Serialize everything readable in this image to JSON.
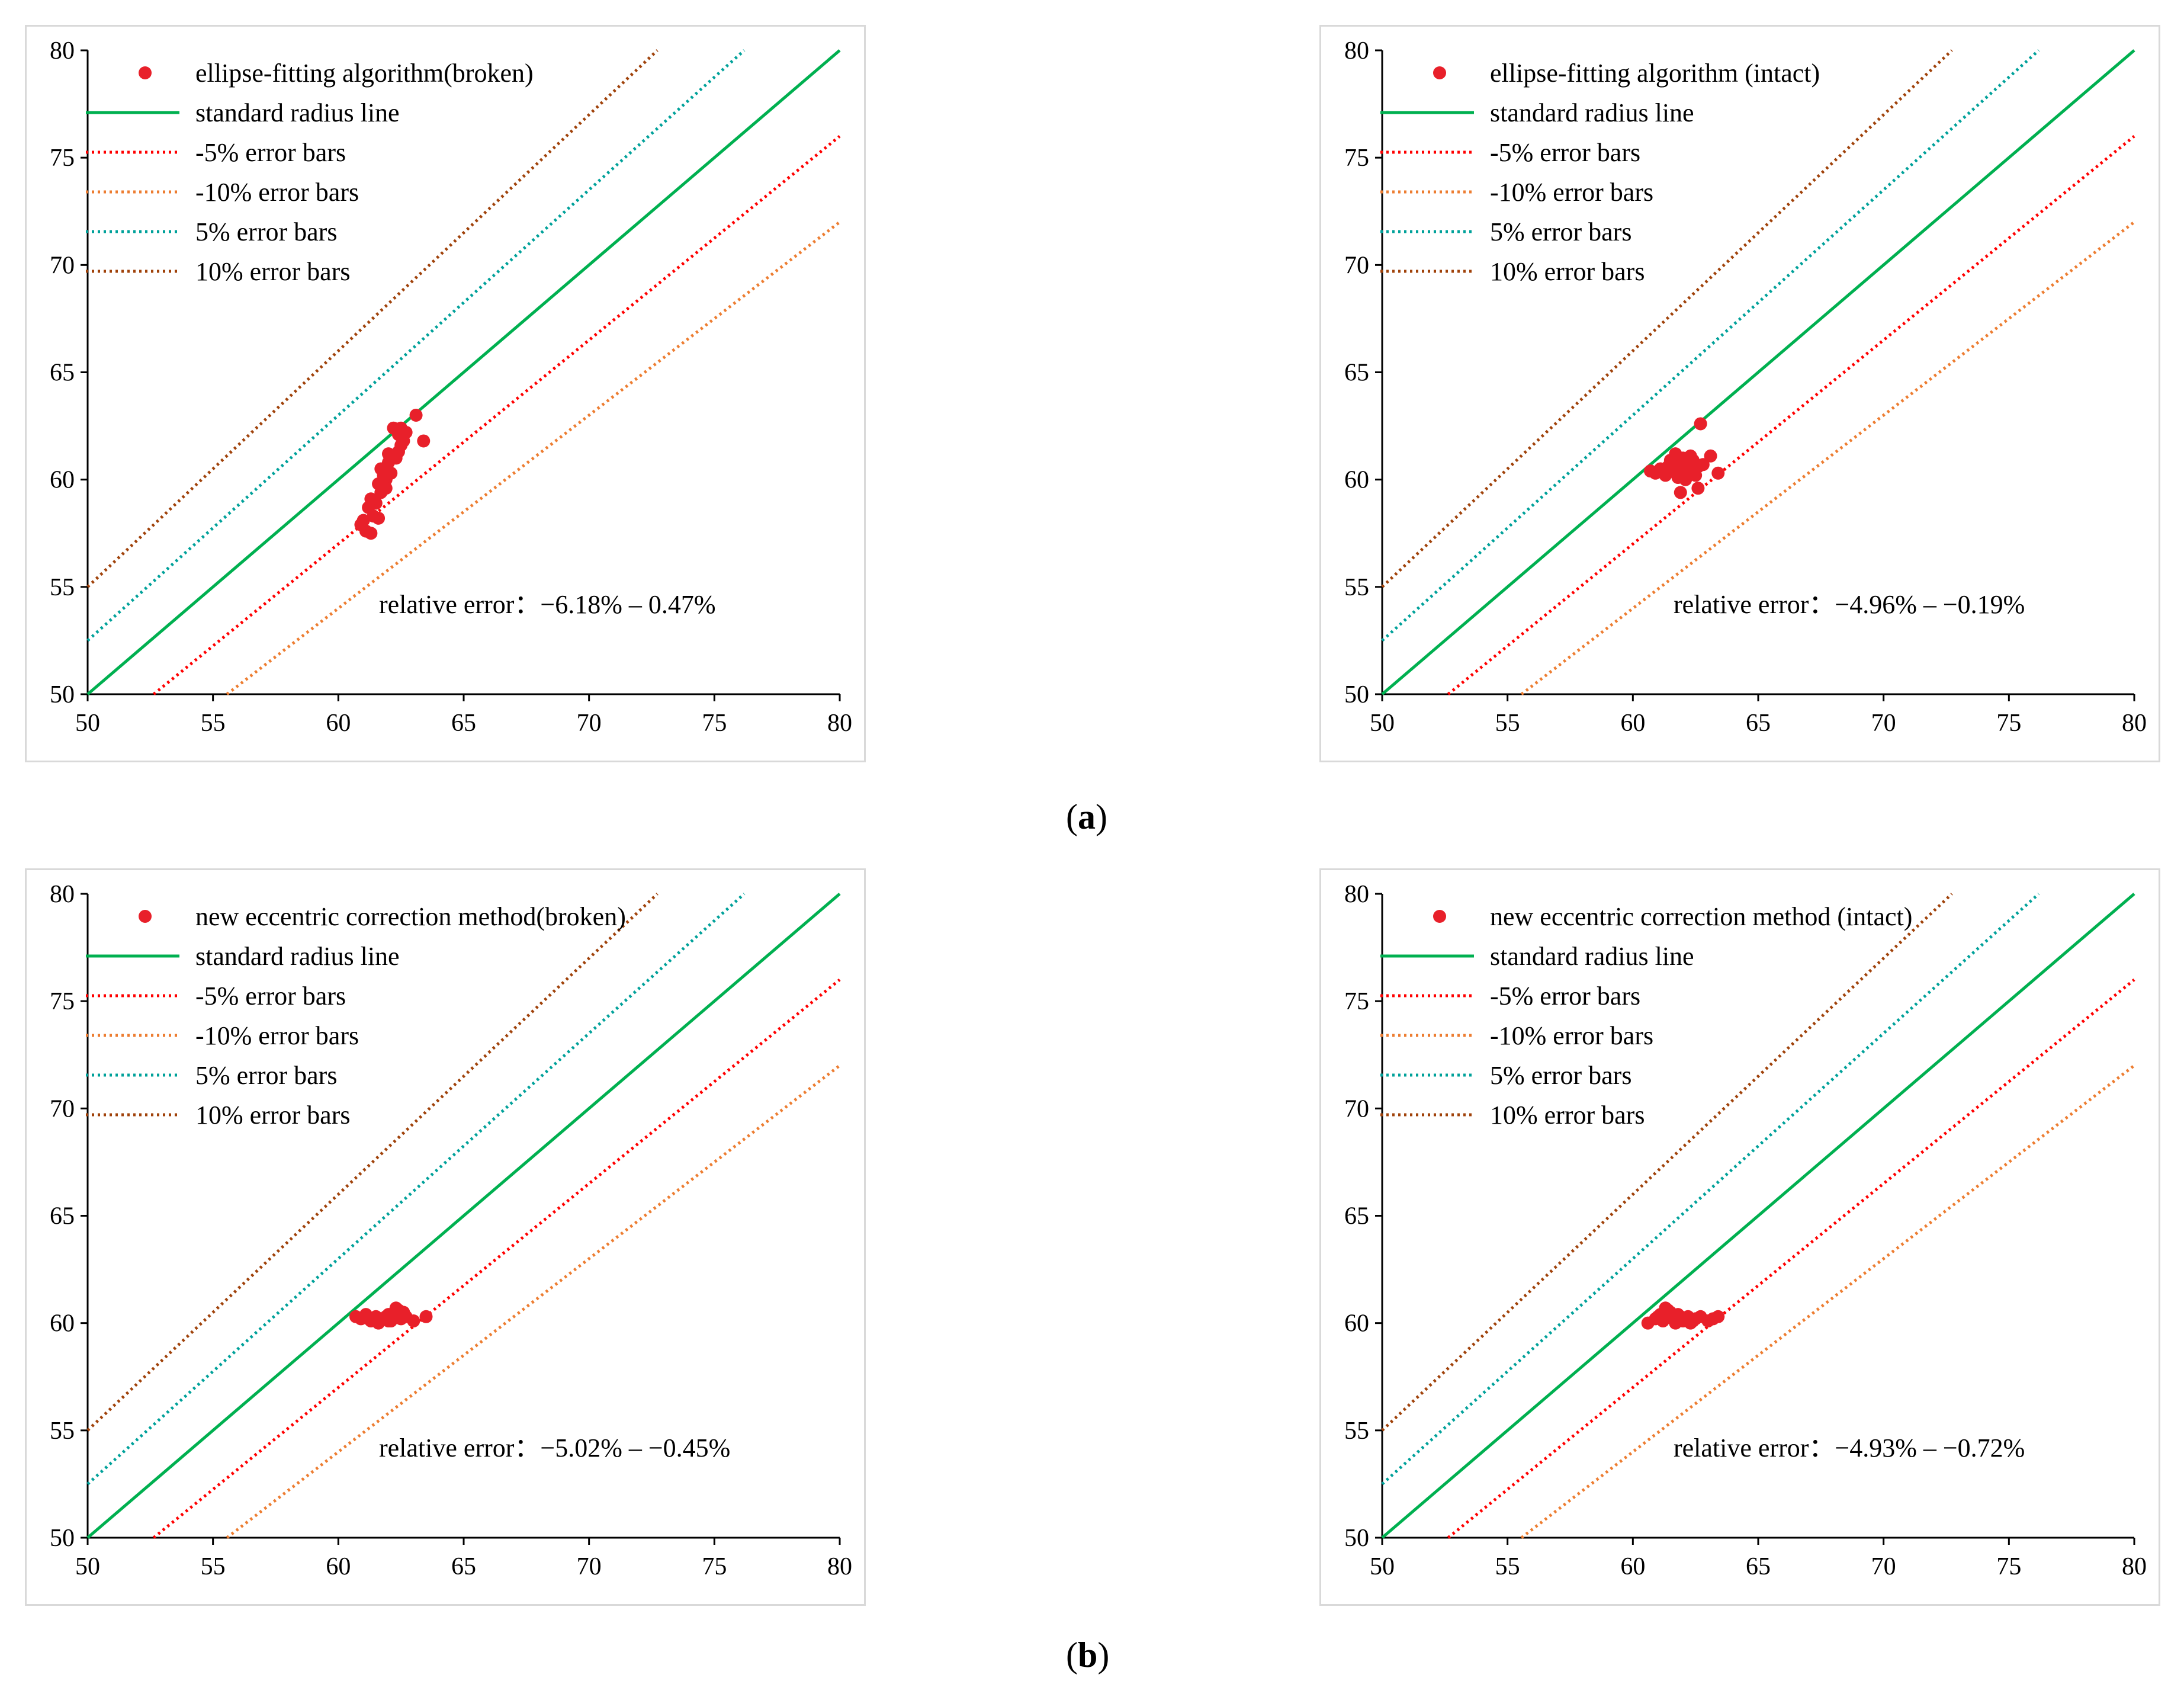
{
  "figure_labels": [
    {
      "open": "(",
      "letter": "a",
      "close": ")"
    },
    {
      "open": "(",
      "letter": "b",
      "close": ")"
    }
  ],
  "colors": {
    "points": "#e8202a",
    "standard": "#00b050",
    "minus5": "#ff0000",
    "minus10": "#ed7d31",
    "plus5": "#00a19a",
    "plus10": "#a0420a",
    "axis": "#000000"
  },
  "chart_data": [
    {
      "type": "scatter",
      "xlim": [
        50,
        80
      ],
      "ylim": [
        50,
        80
      ],
      "xticks": [
        50,
        55,
        60,
        65,
        70,
        75,
        80
      ],
      "yticks": [
        50,
        55,
        60,
        65,
        70,
        75,
        80
      ],
      "legend_position": "top-left",
      "grid": false,
      "annotation": "relative error：−6.18% – 0.47%",
      "series": [
        {
          "name": "ellipse-fitting algorithm(broken)",
          "kind": "points",
          "color": "#e8202a",
          "points": [
            [
              60.9,
              57.9
            ],
            [
              61.1,
              57.6
            ],
            [
              61.3,
              57.5
            ],
            [
              61.0,
              58.1
            ],
            [
              61.4,
              58.3
            ],
            [
              61.6,
              58.2
            ],
            [
              61.2,
              58.7
            ],
            [
              61.5,
              58.9
            ],
            [
              61.3,
              59.1
            ],
            [
              61.7,
              59.4
            ],
            [
              61.6,
              59.8
            ],
            [
              61.9,
              60.0
            ],
            [
              61.8,
              60.2
            ],
            [
              62.1,
              60.3
            ],
            [
              61.7,
              60.5
            ],
            [
              62.0,
              60.8
            ],
            [
              62.3,
              61.0
            ],
            [
              62.4,
              61.3
            ],
            [
              62.5,
              61.6
            ],
            [
              62.6,
              61.8
            ],
            [
              62.4,
              62.1
            ],
            [
              62.7,
              62.2
            ],
            [
              62.2,
              62.4
            ],
            [
              62.5,
              62.4
            ],
            [
              63.1,
              63.0
            ],
            [
              63.4,
              61.8
            ],
            [
              62.0,
              61.2
            ],
            [
              61.9,
              59.6
            ]
          ]
        },
        {
          "name": "standard radius line",
          "kind": "line",
          "style": "solid",
          "color": "#00b050",
          "factor": 1.0
        },
        {
          "name": "-5% error bars",
          "kind": "line",
          "style": "dotted",
          "color": "#ff0000",
          "factor": 0.95
        },
        {
          "name": "-10% error bars",
          "kind": "line",
          "style": "dotted",
          "color": "#ed7d31",
          "factor": 0.9
        },
        {
          "name": "5% error bars",
          "kind": "line",
          "style": "dotted",
          "color": "#00a19a",
          "factor": 1.05
        },
        {
          "name": "10% error bars",
          "kind": "line",
          "style": "dotted",
          "color": "#a0420a",
          "factor": 1.1
        }
      ]
    },
    {
      "type": "scatter",
      "xlim": [
        50,
        80
      ],
      "ylim": [
        50,
        80
      ],
      "xticks": [
        50,
        55,
        60,
        65,
        70,
        75,
        80
      ],
      "yticks": [
        50,
        55,
        60,
        65,
        70,
        75,
        80
      ],
      "legend_position": "top-left",
      "grid": false,
      "annotation": "relative error：−4.96% – −0.19%",
      "series": [
        {
          "name": "ellipse-fitting algorithm (intact)",
          "kind": "points",
          "color": "#e8202a",
          "points": [
            [
              60.7,
              60.4
            ],
            [
              60.9,
              60.3
            ],
            [
              61.1,
              60.5
            ],
            [
              61.3,
              60.2
            ],
            [
              61.4,
              60.6
            ],
            [
              61.6,
              60.4
            ],
            [
              61.8,
              60.1
            ],
            [
              61.9,
              60.7
            ],
            [
              62.1,
              60.3
            ],
            [
              62.2,
              60.8
            ],
            [
              62.4,
              60.5
            ],
            [
              62.5,
              60.2
            ],
            [
              61.5,
              60.9
            ],
            [
              61.7,
              61.2
            ],
            [
              62.0,
              61.0
            ],
            [
              62.3,
              61.1
            ],
            [
              62.6,
              60.6
            ],
            [
              62.8,
              60.7
            ],
            [
              63.1,
              61.1
            ],
            [
              63.4,
              60.3
            ],
            [
              62.6,
              59.6
            ],
            [
              61.9,
              59.4
            ],
            [
              62.1,
              60.0
            ],
            [
              62.7,
              62.6
            ],
            [
              61.2,
              60.4
            ],
            [
              62.4,
              60.9
            ]
          ]
        },
        {
          "name": "standard radius line",
          "kind": "line",
          "style": "solid",
          "color": "#00b050",
          "factor": 1.0
        },
        {
          "name": "-5% error bars",
          "kind": "line",
          "style": "dotted",
          "color": "#ff0000",
          "factor": 0.95
        },
        {
          "name": "-10% error bars",
          "kind": "line",
          "style": "dotted",
          "color": "#ed7d31",
          "factor": 0.9
        },
        {
          "name": "5% error bars",
          "kind": "line",
          "style": "dotted",
          "color": "#00a19a",
          "factor": 1.05
        },
        {
          "name": "10% error bars",
          "kind": "line",
          "style": "dotted",
          "color": "#a0420a",
          "factor": 1.1
        }
      ]
    },
    {
      "type": "scatter",
      "xlim": [
        50,
        80
      ],
      "ylim": [
        50,
        80
      ],
      "xticks": [
        50,
        55,
        60,
        65,
        70,
        75,
        80
      ],
      "yticks": [
        50,
        55,
        60,
        65,
        70,
        75,
        80
      ],
      "legend_position": "top-left",
      "grid": false,
      "annotation": "relative error：−5.02% – −0.45%",
      "series": [
        {
          "name": "new eccentric correction method(broken)",
          "kind": "points",
          "color": "#e8202a",
          "points": [
            [
              60.7,
              60.3
            ],
            [
              60.9,
              60.2
            ],
            [
              61.1,
              60.4
            ],
            [
              61.3,
              60.1
            ],
            [
              61.5,
              60.3
            ],
            [
              61.6,
              60.0
            ],
            [
              61.8,
              60.2
            ],
            [
              62.0,
              60.4
            ],
            [
              62.1,
              60.1
            ],
            [
              62.3,
              60.3
            ],
            [
              62.4,
              60.6
            ],
            [
              62.5,
              60.2
            ],
            [
              62.6,
              60.5
            ],
            [
              62.3,
              60.7
            ],
            [
              62.0,
              60.1
            ],
            [
              61.4,
              60.2
            ],
            [
              61.9,
              60.3
            ],
            [
              63.0,
              60.1
            ],
            [
              63.5,
              60.3
            ],
            [
              62.7,
              60.3
            ],
            [
              61.2,
              60.2
            ]
          ]
        },
        {
          "name": "standard radius line",
          "kind": "line",
          "style": "solid",
          "color": "#00b050",
          "factor": 1.0
        },
        {
          "name": "-5% error bars",
          "kind": "line",
          "style": "dotted",
          "color": "#ff0000",
          "factor": 0.95
        },
        {
          "name": "-10% error bars",
          "kind": "line",
          "style": "dotted",
          "color": "#ed7d31",
          "factor": 0.9
        },
        {
          "name": "5% error bars",
          "kind": "line",
          "style": "dotted",
          "color": "#00a19a",
          "factor": 1.05
        },
        {
          "name": "10% error bars",
          "kind": "line",
          "style": "dotted",
          "color": "#a0420a",
          "factor": 1.1
        }
      ]
    },
    {
      "type": "scatter",
      "xlim": [
        50,
        80
      ],
      "ylim": [
        50,
        80
      ],
      "xticks": [
        50,
        55,
        60,
        65,
        70,
        75,
        80
      ],
      "yticks": [
        50,
        55,
        60,
        65,
        70,
        75,
        80
      ],
      "legend_position": "top-left",
      "grid": false,
      "annotation": "relative error：−4.93% – −0.72%",
      "series": [
        {
          "name": "new eccentric correction method (intact)",
          "kind": "points",
          "color": "#e8202a",
          "points": [
            [
              60.6,
              60.0
            ],
            [
              60.9,
              60.2
            ],
            [
              61.1,
              60.4
            ],
            [
              61.2,
              60.1
            ],
            [
              61.4,
              60.6
            ],
            [
              61.6,
              60.2
            ],
            [
              61.8,
              60.4
            ],
            [
              62.0,
              60.1
            ],
            [
              62.2,
              60.3
            ],
            [
              62.3,
              60.0
            ],
            [
              62.5,
              60.2
            ],
            [
              62.7,
              60.3
            ],
            [
              63.0,
              60.1
            ],
            [
              63.2,
              60.2
            ],
            [
              63.4,
              60.3
            ],
            [
              61.3,
              60.7
            ],
            [
              61.5,
              60.5
            ],
            [
              61.9,
              60.3
            ],
            [
              62.4,
              60.1
            ],
            [
              61.0,
              60.3
            ],
            [
              61.7,
              60.0
            ]
          ]
        },
        {
          "name": "standard radius line",
          "kind": "line",
          "style": "solid",
          "color": "#00b050",
          "factor": 1.0
        },
        {
          "name": "-5% error bars",
          "kind": "line",
          "style": "dotted",
          "color": "#ff0000",
          "factor": 0.95
        },
        {
          "name": "-10% error bars",
          "kind": "line",
          "style": "dotted",
          "color": "#ed7d31",
          "factor": 0.9
        },
        {
          "name": "5% error bars",
          "kind": "line",
          "style": "dotted",
          "color": "#00a19a",
          "factor": 1.05
        },
        {
          "name": "10% error bars",
          "kind": "line",
          "style": "dotted",
          "color": "#a0420a",
          "factor": 1.1
        }
      ]
    }
  ]
}
